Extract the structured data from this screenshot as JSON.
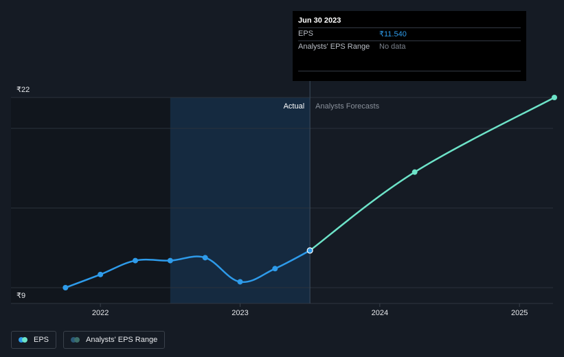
{
  "chart_data": {
    "type": "line",
    "y_ticks": [
      {
        "value": 22,
        "label": "₹22"
      },
      {
        "value": 9,
        "label": "₹9"
      }
    ],
    "x_ticks": [
      {
        "value": 2022,
        "label": "2022"
      },
      {
        "value": 2023,
        "label": "2023"
      },
      {
        "value": 2024,
        "label": "2024"
      },
      {
        "value": 2025,
        "label": "2025"
      }
    ],
    "ylim": [
      8.5,
      22
    ],
    "xlim": [
      2021.36,
      2025.24
    ],
    "grid": true,
    "regions": {
      "actual_label": "Actual",
      "forecast_label": "Analysts Forecasts",
      "divider_x": 2023.5,
      "shade_start_x": 2022.5
    },
    "series": [
      {
        "name": "EPS",
        "color": "#2e9bea",
        "points": [
          {
            "x": 2021.75,
            "y": 9.0
          },
          {
            "x": 2022.0,
            "y": 9.9
          },
          {
            "x": 2022.25,
            "y": 10.85
          },
          {
            "x": 2022.5,
            "y": 10.85
          },
          {
            "x": 2022.75,
            "y": 11.05
          },
          {
            "x": 2023.0,
            "y": 9.4
          },
          {
            "x": 2023.25,
            "y": 10.3
          },
          {
            "x": 2023.5,
            "y": 11.54
          }
        ]
      },
      {
        "name": "EPS Forecast",
        "color": "#6de3c8",
        "points": [
          {
            "x": 2023.5,
            "y": 11.54
          },
          {
            "x": 2024.25,
            "y": 16.9
          },
          {
            "x": 2025.25,
            "y": 22.0
          }
        ]
      }
    ]
  },
  "tooltip": {
    "date": "Jun 30 2023",
    "rows": [
      {
        "label": "EPS",
        "value": "₹11.540"
      },
      {
        "label": "Analysts' EPS Range",
        "value": "No data"
      }
    ]
  },
  "legend": [
    {
      "label": "EPS",
      "colors": [
        "#2e9bea",
        "#6de3c8"
      ]
    },
    {
      "label": "Analysts' EPS Range",
      "colors": [
        "#2b5a78",
        "#3d6f6a"
      ]
    }
  ]
}
